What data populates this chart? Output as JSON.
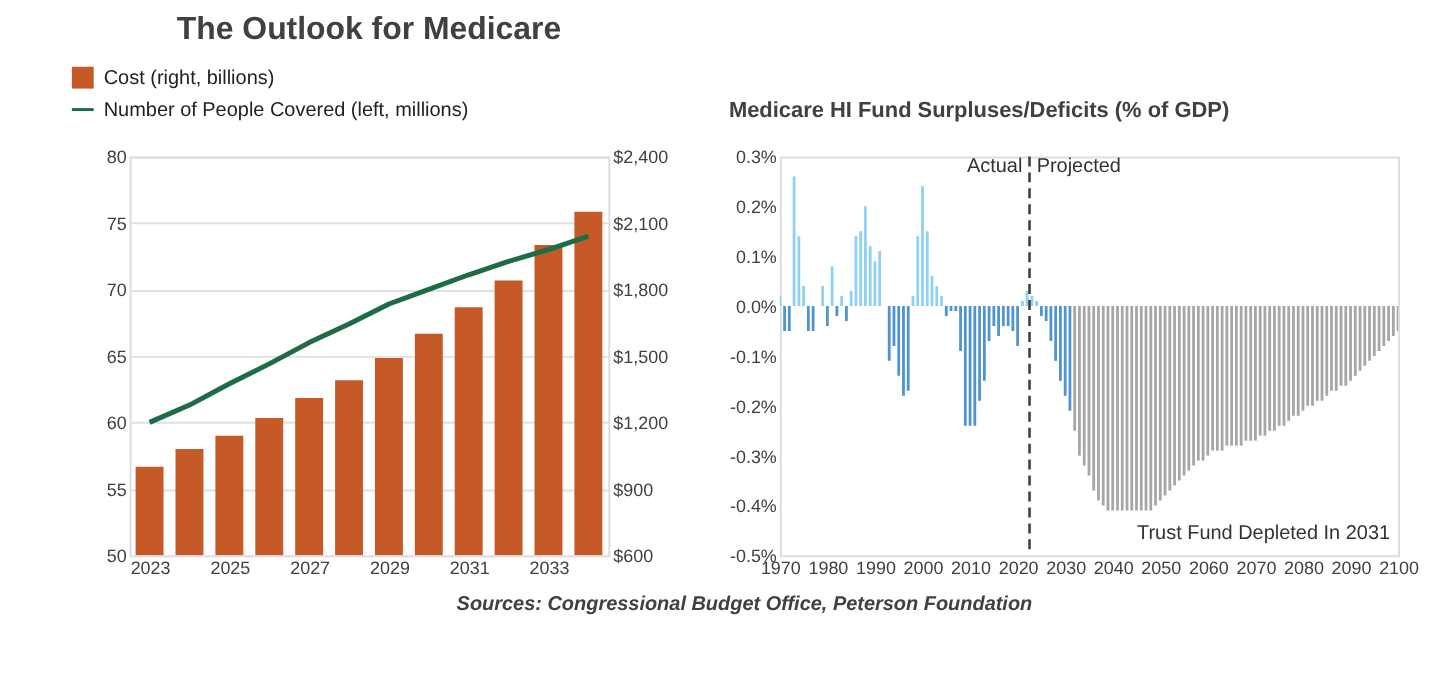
{
  "chart_data": [
    {
      "type": "bar",
      "title": "The Outlook for Medicare",
      "x": [
        2023,
        2024,
        2025,
        2026,
        2027,
        2028,
        2029,
        2030,
        2031,
        2032,
        2033,
        2034
      ],
      "xlim": [
        2022.5,
        2034.5
      ],
      "xticks": [
        2023,
        2025,
        2027,
        2029,
        2031,
        2033
      ],
      "series": [
        {
          "name": "Cost (right, billions)",
          "axis": "y2",
          "color": "#c55a28",
          "values": [
            1000,
            1080,
            1140,
            1220,
            1310,
            1390,
            1490,
            1600,
            1720,
            1840,
            2000,
            2150
          ]
        },
        {
          "name": "Number of People Covered (left, millions)",
          "type": "line",
          "color": "#1e6b48",
          "values": [
            60.0,
            61.3,
            62.9,
            64.4,
            66.0,
            67.4,
            68.9,
            70.0,
            71.1,
            72.1,
            73.0,
            74.0
          ]
        }
      ],
      "ylim": [
        50,
        80
      ],
      "yticks": [
        50,
        55,
        60,
        65,
        70,
        75,
        80
      ],
      "y2lim": [
        600,
        2400
      ],
      "y2ticks": [
        {
          "value": 600,
          "label": "$600"
        },
        {
          "value": 900,
          "label": "$900"
        },
        {
          "value": 1200,
          "label": "$1,200"
        },
        {
          "value": 1500,
          "label": "$1,500"
        },
        {
          "value": 1800,
          "label": "$1,800"
        },
        {
          "value": 2100,
          "label": "$2,100"
        },
        {
          "value": 2400,
          "label": "$2,400"
        }
      ],
      "grid": "y",
      "legend": "top left",
      "line_style": "solid",
      "marker": "none",
      "annotations": [
        "Sources: Congressional Budget Office, Peterson Foundation"
      ]
    },
    {
      "type": "bar",
      "title": "Medicare HI Fund Surpluses/Deficits (% of GDP)",
      "series": [
        {
          "color": "#8fd0f5",
          "x": [
            1970,
            1973,
            1974,
            1975,
            1979,
            1981,
            1983,
            1985,
            1986,
            1987,
            1988,
            1989,
            1990,
            1991,
            1998,
            1999,
            2000,
            2001,
            2002,
            2003,
            2004,
            2021,
            2022,
            2023,
            2024
          ],
          "values": [
            0.02,
            0.26,
            0.14,
            0.04,
            0.04,
            0.08,
            0.02,
            0.03,
            0.14,
            0.15,
            0.2,
            0.12,
            0.09,
            0.11,
            0.02,
            0.14,
            0.24,
            0.15,
            0.06,
            0.04,
            0.02,
            0.01,
            0.03,
            0.02,
            0.01
          ]
        },
        {
          "color": "#4f93cf",
          "x": [
            1971,
            1972,
            1976,
            1977,
            1980,
            1982,
            1984,
            1993,
            1994,
            1995,
            1996,
            1997,
            2005,
            2006,
            2007,
            2008,
            2009,
            2010,
            2011,
            2012,
            2013,
            2014,
            2015,
            2016,
            2017,
            2018,
            2019,
            2020,
            2025,
            2026,
            2027,
            2028,
            2029,
            2030,
            2031
          ],
          "values": [
            -0.05,
            -0.05,
            -0.05,
            -0.05,
            -0.04,
            -0.02,
            -0.03,
            -0.11,
            -0.08,
            -0.14,
            -0.18,
            -0.17,
            -0.02,
            -0.01,
            -0.01,
            -0.09,
            -0.24,
            -0.24,
            -0.24,
            -0.19,
            -0.15,
            -0.07,
            -0.04,
            -0.06,
            -0.04,
            -0.04,
            -0.05,
            -0.08,
            -0.02,
            -0.03,
            -0.07,
            -0.11,
            -0.15,
            -0.18,
            -0.21
          ]
        },
        {
          "color": "#a6a6a6",
          "x": [
            2032,
            2033,
            2034,
            2035,
            2036,
            2037,
            2038,
            2039,
            2040,
            2041,
            2042,
            2043,
            2044,
            2045,
            2046,
            2047,
            2048,
            2049,
            2050,
            2051,
            2052,
            2053,
            2054,
            2055,
            2056,
            2057,
            2058,
            2059,
            2060,
            2061,
            2062,
            2063,
            2064,
            2065,
            2066,
            2067,
            2068,
            2069,
            2070,
            2071,
            2072,
            2073,
            2074,
            2075,
            2076,
            2077,
            2078,
            2079,
            2080,
            2081,
            2082,
            2083,
            2084,
            2085,
            2086,
            2087,
            2088,
            2089,
            2090,
            2091,
            2092,
            2093,
            2094,
            2095,
            2096,
            2097,
            2098,
            2099,
            2100
          ],
          "values": [
            -0.25,
            -0.3,
            -0.32,
            -0.34,
            -0.37,
            -0.39,
            -0.4,
            -0.41,
            -0.41,
            -0.41,
            -0.41,
            -0.41,
            -0.41,
            -0.41,
            -0.41,
            -0.41,
            -0.41,
            -0.4,
            -0.39,
            -0.38,
            -0.37,
            -0.36,
            -0.35,
            -0.34,
            -0.33,
            -0.32,
            -0.31,
            -0.31,
            -0.3,
            -0.29,
            -0.29,
            -0.29,
            -0.28,
            -0.28,
            -0.28,
            -0.28,
            -0.27,
            -0.27,
            -0.27,
            -0.26,
            -0.26,
            -0.25,
            -0.25,
            -0.24,
            -0.24,
            -0.23,
            -0.22,
            -0.22,
            -0.21,
            -0.2,
            -0.2,
            -0.19,
            -0.19,
            -0.18,
            -0.17,
            -0.17,
            -0.16,
            -0.16,
            -0.15,
            -0.14,
            -0.13,
            -0.12,
            -0.11,
            -0.1,
            -0.09,
            -0.08,
            -0.07,
            -0.06,
            -0.05
          ]
        }
      ],
      "xlim": [
        1970,
        2100
      ],
      "xticks": [
        1970,
        1980,
        1990,
        2000,
        2010,
        2020,
        2030,
        2040,
        2050,
        2060,
        2070,
        2080,
        2090,
        2100
      ],
      "ylim": [
        -0.5,
        0.3
      ],
      "yticks": [
        {
          "value": -0.5,
          "label": "-0.5%"
        },
        {
          "value": -0.4,
          "label": "-0.4%"
        },
        {
          "value": -0.3,
          "label": "-0.3%"
        },
        {
          "value": -0.2,
          "label": "-0.2%"
        },
        {
          "value": -0.1,
          "label": "-0.1%"
        },
        {
          "value": 0,
          "label": "0.0%"
        },
        {
          "value": 0.1,
          "label": "0.1%"
        },
        {
          "value": 0.2,
          "label": "0.2%"
        },
        {
          "value": 0.3,
          "label": "0.3%"
        }
      ],
      "ref_lines": [
        {
          "axis": "x",
          "value": 2022.5,
          "color": "#404040",
          "line_style": "dashed"
        }
      ],
      "annotations": [
        {
          "text": "Actual",
          "x": 2021,
          "y": 0.28
        },
        {
          "text": "Projected",
          "x": 2024,
          "y": 0.28
        },
        "Trust Fund Depleted In 2031"
      ],
      "grid": false
    }
  ]
}
